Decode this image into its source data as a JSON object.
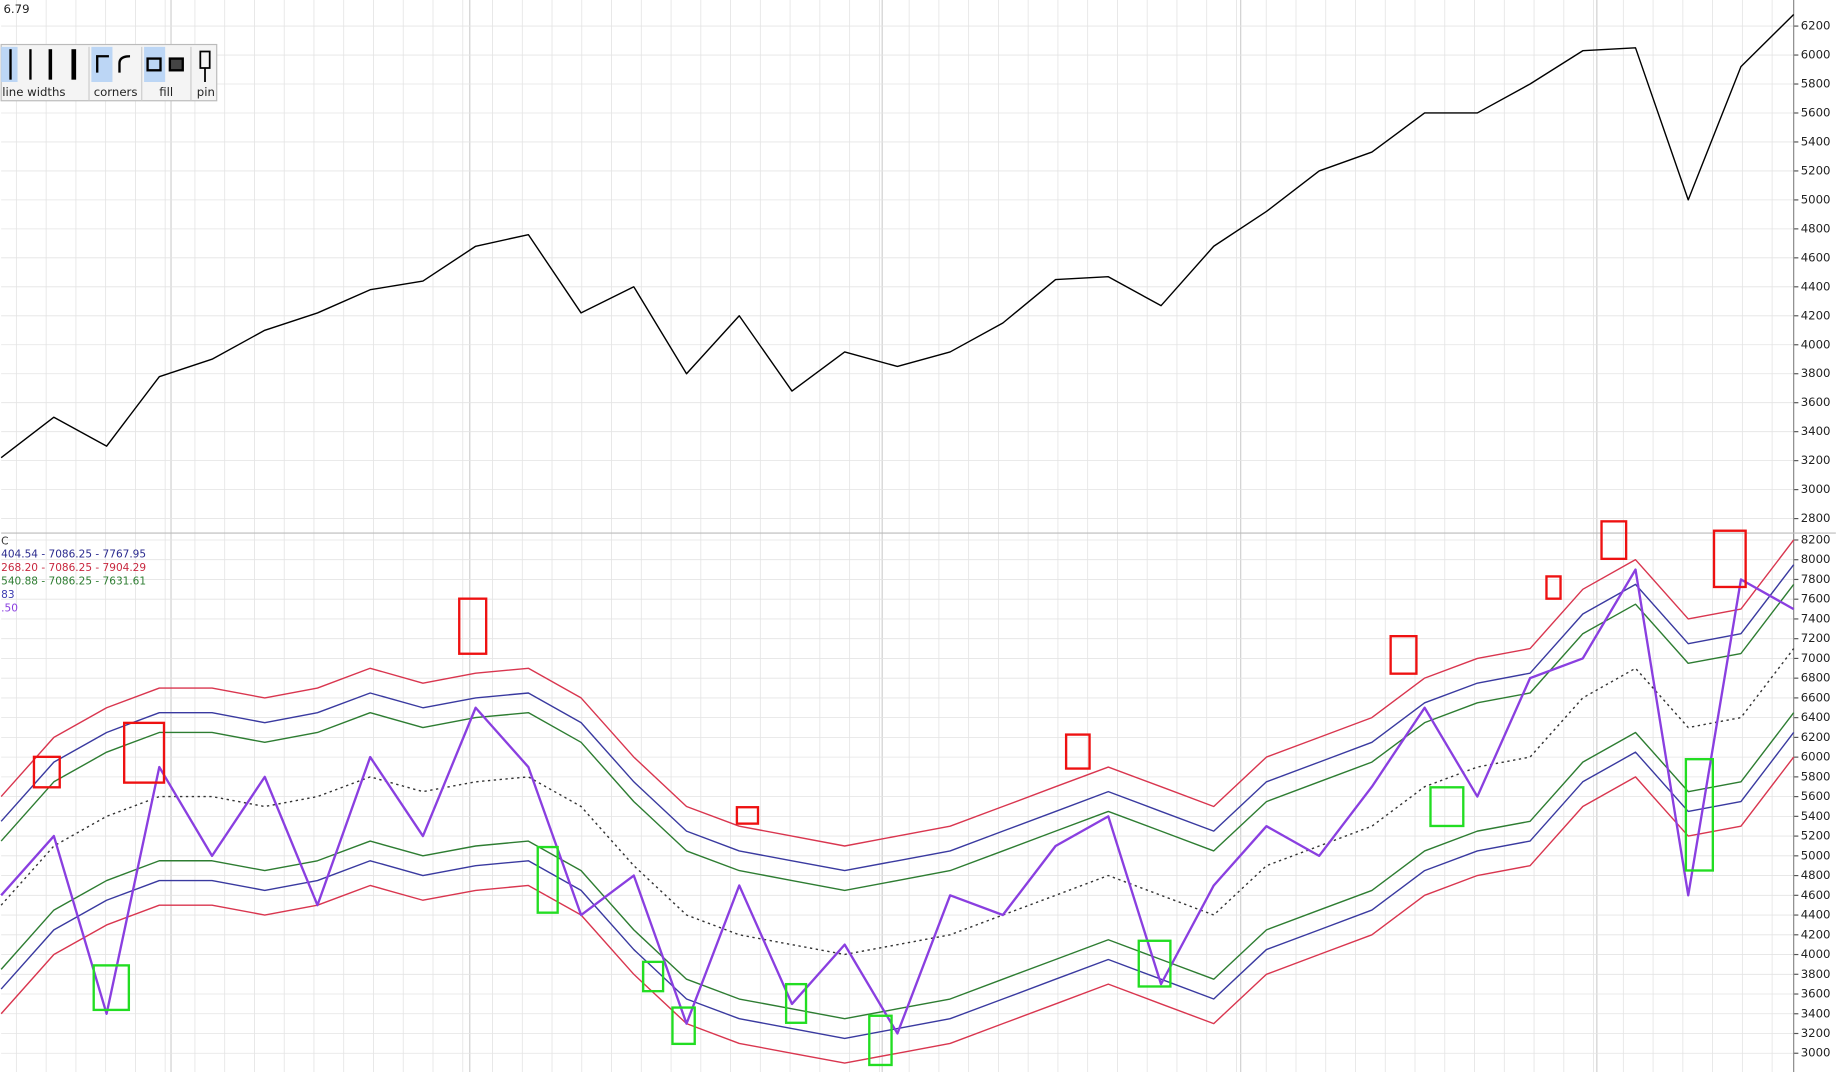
{
  "price_label": "6.79",
  "toolbar": {
    "labels": [
      "line widths",
      "corners",
      "fill",
      "pin"
    ]
  },
  "chart_data": [
    {
      "type": "line",
      "ylim": [
        2700,
        6380
      ],
      "yticks": [
        2800,
        3000,
        3200,
        3400,
        3600,
        3800,
        4000,
        4200,
        4400,
        4600,
        4800,
        5000,
        5200,
        5400,
        5600,
        5800,
        6000,
        6200
      ],
      "grid": true,
      "series": [
        {
          "color": "#000000",
          "values": [
            3220,
            3500,
            3300,
            3780,
            3900,
            4100,
            4220,
            4380,
            4440,
            4680,
            4760,
            4220,
            4400,
            3800,
            4200,
            3680,
            3950,
            3850,
            3950,
            4150,
            4450,
            4470,
            4270,
            4680,
            4920,
            5200,
            5330,
            5600,
            5600,
            5800,
            6030,
            6050,
            5000,
            5920,
            6280
          ]
        }
      ]
    },
    {
      "type": "line",
      "ylim": [
        2810,
        8270
      ],
      "yticks": [
        3000,
        3200,
        3400,
        3600,
        3800,
        4000,
        4200,
        4400,
        4600,
        4800,
        5000,
        5200,
        5400,
        5600,
        5800,
        6000,
        6200,
        6400,
        6600,
        6800,
        7000,
        7200,
        7400,
        7600,
        7800,
        8000,
        8200
      ],
      "grid": true,
      "legend_texts": [
        "C",
        "404.54 - 7086.25 - 7767.95",
        "268.20 - 7086.25 - 7904.29",
        "540.88 - 7086.25 - 7631.61",
        "83",
        ".50"
      ],
      "legend_colors": [
        "#333333",
        "#2b2b8f",
        "#c8283f",
        "#2e7d32",
        "#3a3ab0",
        "#8a3fe0"
      ],
      "series": [
        {
          "color": "#d9364f",
          "values": [
            5600,
            6200,
            6500,
            6700,
            6700,
            6600,
            6700,
            6900,
            6750,
            6850,
            6900,
            6600,
            6000,
            5500,
            5300,
            5200,
            5100,
            5200,
            5300,
            5500,
            5700,
            5900,
            5700,
            5500,
            6000,
            6200,
            6400,
            6800,
            7000,
            7100,
            7700,
            8000,
            7400,
            7500,
            8200
          ]
        },
        {
          "color": "#3a3aa0",
          "values": [
            5350,
            5950,
            6250,
            6450,
            6450,
            6350,
            6450,
            6650,
            6500,
            6600,
            6650,
            6350,
            5750,
            5250,
            5050,
            4950,
            4850,
            4950,
            5050,
            5250,
            5450,
            5650,
            5450,
            5250,
            5750,
            5950,
            6150,
            6550,
            6750,
            6850,
            7450,
            7750,
            7150,
            7250,
            7950
          ]
        },
        {
          "color": "#2e7d32",
          "values": [
            5150,
            5750,
            6050,
            6250,
            6250,
            6150,
            6250,
            6450,
            6300,
            6400,
            6450,
            6150,
            5550,
            5050,
            4850,
            4750,
            4650,
            4750,
            4850,
            5050,
            5250,
            5450,
            5250,
            5050,
            5550,
            5750,
            5950,
            6350,
            6550,
            6650,
            7250,
            7550,
            6950,
            7050,
            7750
          ]
        },
        {
          "color": "#333333",
          "dashed": true,
          "values": [
            4500,
            5100,
            5400,
            5600,
            5600,
            5500,
            5600,
            5800,
            5650,
            5750,
            5800,
            5500,
            4900,
            4400,
            4200,
            4100,
            4000,
            4100,
            4200,
            4400,
            4600,
            4800,
            4600,
            4400,
            4900,
            5100,
            5300,
            5700,
            5900,
            6000,
            6600,
            6900,
            6300,
            6400,
            7100
          ]
        },
        {
          "color": "#2e7d32",
          "values": [
            3850,
            4450,
            4750,
            4950,
            4950,
            4850,
            4950,
            5150,
            5000,
            5100,
            5150,
            4850,
            4250,
            3750,
            3550,
            3450,
            3350,
            3450,
            3550,
            3750,
            3950,
            4150,
            3950,
            3750,
            4250,
            4450,
            4650,
            5050,
            5250,
            5350,
            5950,
            6250,
            5650,
            5750,
            6450
          ]
        },
        {
          "color": "#3a3aa0",
          "values": [
            3650,
            4250,
            4550,
            4750,
            4750,
            4650,
            4750,
            4950,
            4800,
            4900,
            4950,
            4650,
            4050,
            3550,
            3350,
            3250,
            3150,
            3250,
            3350,
            3550,
            3750,
            3950,
            3750,
            3550,
            4050,
            4250,
            4450,
            4850,
            5050,
            5150,
            5750,
            6050,
            5450,
            5550,
            6250
          ]
        },
        {
          "color": "#d9364f",
          "values": [
            3400,
            4000,
            4300,
            4500,
            4500,
            4400,
            4500,
            4700,
            4550,
            4650,
            4700,
            4400,
            3800,
            3300,
            3100,
            3000,
            2900,
            3000,
            3100,
            3300,
            3500,
            3700,
            3500,
            3300,
            3800,
            4000,
            4200,
            4600,
            4800,
            4900,
            5500,
            5800,
            5200,
            5300,
            6000
          ]
        },
        {
          "color": "#8a3fe0",
          "width": 2,
          "values": [
            4600,
            5200,
            3400,
            5900,
            5000,
            5800,
            4500,
            6000,
            5200,
            6500,
            5900,
            4400,
            4800,
            3300,
            4700,
            3500,
            4100,
            3200,
            4600,
            4400,
            5100,
            5400,
            3700,
            4700,
            5300,
            5000,
            5700,
            6500,
            5600,
            6800,
            7000,
            7900,
            4600,
            7800,
            7500
          ]
        }
      ]
    }
  ]
}
